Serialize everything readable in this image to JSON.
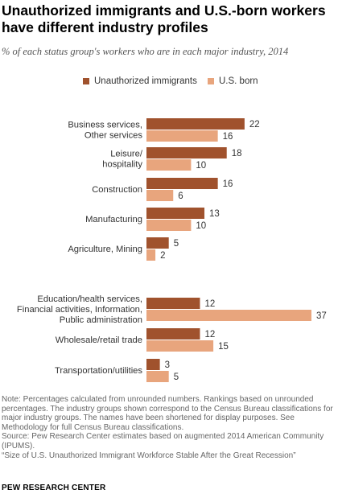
{
  "title": "Unauthorized immigrants and U.S.-born workers have different industry profiles",
  "subtitle": "% of each status group's workers who are in each major industry, 2014",
  "colors": {
    "unauthorized": "#A0522D",
    "us_born": "#E8A57D"
  },
  "chart_data": {
    "type": "bar",
    "orientation": "horizontal",
    "categories": [
      "Business services, Other services",
      "Leisure/ hospitality",
      "Construction",
      "Manufacturing",
      "Agriculture, Mining",
      "Education/health services, Financial activities, Information, Public administration",
      "Wholesale/ retail trade",
      "Transportation/utilities"
    ],
    "category_lines": [
      [
        "Business services,",
        "Other services"
      ],
      [
        "Leisure/",
        "hospitality"
      ],
      [
        "Construction"
      ],
      [
        "Manufacturing"
      ],
      [
        "Agriculture, Mining"
      ],
      [
        "Education/health services,",
        "Financial activities, Information,",
        "Public administration"
      ],
      [
        "Wholesale/retail trade"
      ],
      [
        "Transportation/utilities"
      ]
    ],
    "series": [
      {
        "name": "Unauthorized immigrants",
        "values": [
          22,
          18,
          16,
          13,
          5,
          12,
          12,
          3
        ]
      },
      {
        "name": "U.S. born",
        "values": [
          16,
          10,
          6,
          10,
          2,
          37,
          15,
          5
        ]
      }
    ],
    "xlim": [
      0,
      37
    ],
    "legend_position": "top",
    "grid": false
  },
  "notes": [
    "Note: Percentages calculated from unrounded numbers. Rankings based on unrounded percentages. The industry groups shown correspond to the Census Bureau classifications for major industry groups. The names have been shortened for display purposes. See Methodology for full Census Bureau classifications.",
    "Source: Pew Research Center estimates based on augmented 2014 American Community (IPUMS).",
    "“Size of U.S. Unauthorized Immigrant Workforce Stable After the Great Recession”"
  ],
  "brand": "PEW RESEARCH CENTER"
}
